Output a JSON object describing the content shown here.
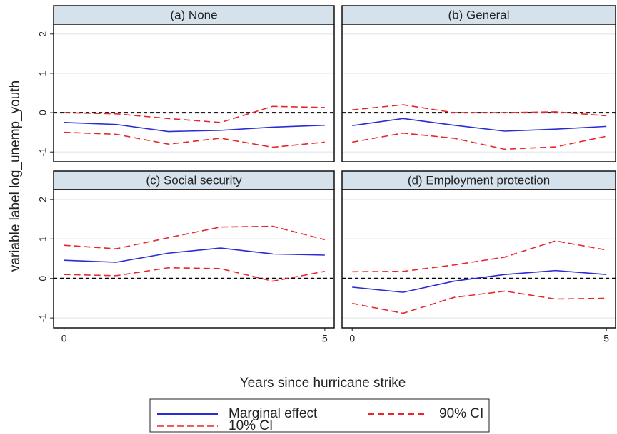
{
  "figure": {
    "ylabel": "variable label log_unemp_youth",
    "xlabel": "Years since hurricane strike"
  },
  "chart_data": [
    {
      "type": "line",
      "title": "(a) None",
      "x": [
        0,
        1,
        2,
        3,
        4,
        5
      ],
      "xlim": [
        -0.2,
        5.18
      ],
      "ylim": [
        -1.25,
        2.25
      ],
      "yticks": [
        -1,
        0,
        1,
        2
      ],
      "hline": 0,
      "grid": true,
      "series": [
        {
          "name": "Marginal effect",
          "color": "#2b2bd6",
          "dash": "solid",
          "values": [
            -0.25,
            -0.3,
            -0.48,
            -0.45,
            -0.37,
            -0.32
          ]
        },
        {
          "name": "90% CI",
          "color": "#e8262b",
          "dash": "dashed",
          "values": [
            0.0,
            -0.03,
            -0.15,
            -0.25,
            0.16,
            0.13
          ]
        },
        {
          "name": "10% CI",
          "color": "#e8262b",
          "dash": "dashed",
          "values": [
            -0.5,
            -0.55,
            -0.8,
            -0.65,
            -0.88,
            -0.75
          ]
        }
      ]
    },
    {
      "type": "line",
      "title": "(b) General",
      "x": [
        0,
        1,
        2,
        3,
        4,
        5
      ],
      "xlim": [
        -0.2,
        5.18
      ],
      "ylim": [
        -1.25,
        2.25
      ],
      "yticks": [
        -1,
        0,
        1,
        2
      ],
      "hline": 0,
      "grid": true,
      "series": [
        {
          "name": "Marginal effect",
          "color": "#2b2bd6",
          "dash": "solid",
          "values": [
            -0.33,
            -0.15,
            -0.32,
            -0.47,
            -0.42,
            -0.35
          ]
        },
        {
          "name": "90% CI",
          "color": "#e8262b",
          "dash": "dashed",
          "values": [
            0.07,
            0.2,
            0.0,
            0.0,
            0.02,
            -0.08
          ]
        },
        {
          "name": "10% CI",
          "color": "#e8262b",
          "dash": "dashed",
          "values": [
            -0.75,
            -0.52,
            -0.65,
            -0.93,
            -0.87,
            -0.6
          ]
        }
      ]
    },
    {
      "type": "line",
      "title": "(c) Social security",
      "x": [
        0,
        1,
        2,
        3,
        4,
        5
      ],
      "xlim": [
        -0.2,
        5.18
      ],
      "xticks": [
        0,
        5
      ],
      "ylim": [
        -1.25,
        2.25
      ],
      "yticks": [
        -1,
        0,
        1,
        2
      ],
      "hline": 0,
      "grid": true,
      "series": [
        {
          "name": "Marginal effect",
          "color": "#2b2bd6",
          "dash": "solid",
          "values": [
            0.46,
            0.41,
            0.64,
            0.77,
            0.62,
            0.59
          ]
        },
        {
          "name": "90% CI",
          "color": "#e8262b",
          "dash": "dashed",
          "values": [
            0.84,
            0.75,
            1.03,
            1.3,
            1.32,
            0.98
          ]
        },
        {
          "name": "10% CI",
          "color": "#e8262b",
          "dash": "dashed",
          "values": [
            0.1,
            0.07,
            0.27,
            0.25,
            -0.07,
            0.18
          ]
        }
      ]
    },
    {
      "type": "line",
      "title": "(d) Employment protection",
      "x": [
        0,
        1,
        2,
        3,
        4,
        5
      ],
      "xlim": [
        -0.2,
        5.18
      ],
      "xticks": [
        0,
        5
      ],
      "ylim": [
        -1.25,
        2.25
      ],
      "yticks": [
        -1,
        0,
        1,
        2
      ],
      "hline": 0,
      "grid": true,
      "series": [
        {
          "name": "Marginal effect",
          "color": "#2b2bd6",
          "dash": "solid",
          "values": [
            -0.22,
            -0.35,
            -0.07,
            0.1,
            0.2,
            0.1
          ]
        },
        {
          "name": "90% CI",
          "color": "#e8262b",
          "dash": "dashed",
          "values": [
            0.17,
            0.18,
            0.34,
            0.54,
            0.95,
            0.72
          ]
        },
        {
          "name": "10% CI",
          "color": "#e8262b",
          "dash": "dashed",
          "values": [
            -0.63,
            -0.88,
            -0.48,
            -0.32,
            -0.52,
            -0.5
          ]
        }
      ]
    }
  ]
}
